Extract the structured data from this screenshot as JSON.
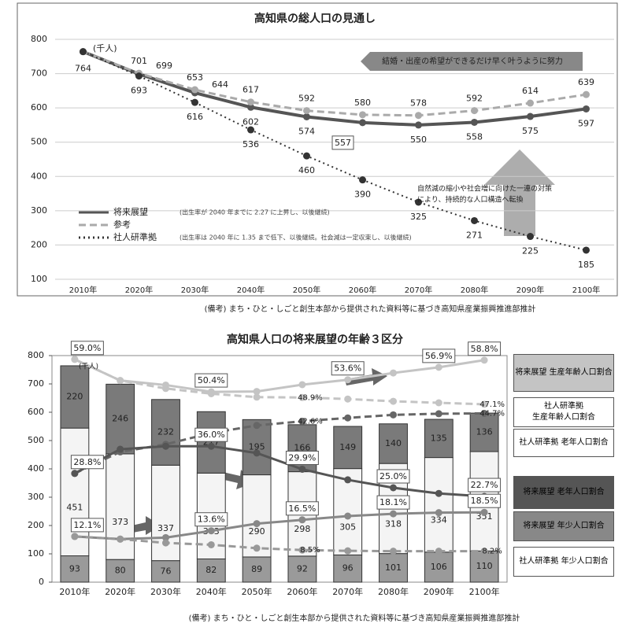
{
  "chart_data": [
    {
      "type": "line",
      "title": "高知県の総人口の見通し",
      "categories": [
        "2010年",
        "2020年",
        "2030年",
        "2040年",
        "2050年",
        "2060年",
        "2070年",
        "2080年",
        "2090年",
        "2100年"
      ],
      "series": [
        {
          "name": "将来展望",
          "color": "#555555",
          "style": "solid",
          "values": [
            764,
            699,
            644,
            602,
            574,
            557,
            550,
            558,
            575,
            597
          ],
          "value_labels": [
            "764",
            "699",
            "644",
            "602",
            "574",
            "557",
            "550",
            "558",
            "575",
            "597"
          ]
        },
        {
          "name": "参考",
          "color": "#aaaaaa",
          "style": "dashed",
          "values": [
            764,
            701,
            653,
            617,
            592,
            580,
            578,
            592,
            614,
            639
          ],
          "value_labels": [
            null,
            "701",
            "653",
            "617",
            "592",
            "580",
            "578",
            "592",
            "614",
            "639"
          ]
        },
        {
          "name": "社人研準拠",
          "color": "#333333",
          "style": "dotted",
          "values": [
            764,
            693,
            616,
            536,
            460,
            390,
            325,
            271,
            225,
            185
          ],
          "value_labels": [
            null,
            "693",
            "616",
            "536",
            "460",
            "390",
            "325",
            "271",
            "225",
            "185"
          ]
        }
      ],
      "ylim": [
        100,
        800
      ],
      "yticks": [
        100,
        200,
        300,
        400,
        500,
        600,
        700,
        800
      ],
      "grid": true,
      "annotations": [
        "(千人)",
        "結婚・出産の希望ができるだけ早く叶うように努力",
        "自然減の縮小や社会増に向けた一連の対策",
        "により、持続的な人口構造へ転換",
        "(出生率が 2040 年までに 2.27 に上昇し、以後継続)",
        "(出生率は 2040 年に 1.35 まで低下、以後継続。社会減は一定収束し、以後継続)"
      ],
      "footnote": "(備考) まち・ひと・しごと創生本部から提供された資料等に基づき高知県産業振興推進部推計"
    },
    {
      "type": "bar",
      "title": "高知県人口の将来展望の年齢３区分",
      "categories": [
        "2010年",
        "2020年",
        "2030年",
        "2040年",
        "2050年",
        "2060年",
        "2070年",
        "2080年",
        "2090年",
        "2100年"
      ],
      "stacks": [
        {
          "color": "#9a9a9a",
          "values": [
            93,
            80,
            76,
            82,
            89,
            92,
            96,
            101,
            106,
            110
          ]
        },
        {
          "color": "#f4f4f4",
          "values": [
            451,
            373,
            337,
            303,
            290,
            298,
            305,
            318,
            334,
            351
          ]
        },
        {
          "color": "#7a7a7a",
          "values": [
            220,
            246,
            232,
            217,
            195,
            166,
            149,
            140,
            135,
            136
          ]
        }
      ],
      "ylim": [
        0,
        800
      ],
      "yticks": [
        0,
        100,
        200,
        300,
        400,
        500,
        600,
        700,
        800
      ],
      "y2lim": [
        0,
        60
      ],
      "series": [
        {
          "name": "将来展望 生産年齢人口割合",
          "color": "#c4c4c4",
          "style": "solid",
          "axis": "y2",
          "values": [
            59.0,
            53.4,
            52.2,
            50.4,
            50.5,
            52.3,
            53.6,
            55.4,
            56.9,
            58.8
          ],
          "value_labels": [
            "59.0%",
            null,
            null,
            "50.4%",
            null,
            null,
            "53.6%",
            null,
            "56.9%",
            "58.8%"
          ]
        },
        {
          "name": "社人研準拠 生産年齢人口割合",
          "color": "#c4c4c4",
          "style": "dashed",
          "axis": "y2",
          "values": [
            59.0,
            53.4,
            51.3,
            49.9,
            49.0,
            48.9,
            48.5,
            47.9,
            47.5,
            47.1
          ],
          "value_labels": [
            null,
            null,
            null,
            null,
            null,
            "48.9%",
            null,
            null,
            null,
            "47.1%"
          ]
        },
        {
          "name": "社人研準拠 老年人口割合",
          "color": "#666666",
          "style": "dashed",
          "axis": "y2",
          "values": [
            28.8,
            34.5,
            36.5,
            39.5,
            41.5,
            42.6,
            43.5,
            44.3,
            44.6,
            44.7
          ],
          "value_labels": [
            null,
            null,
            null,
            null,
            null,
            "42.6%",
            null,
            null,
            null,
            "44.7%"
          ]
        },
        {
          "name": "将来展望 老年人口割合",
          "color": "#555555",
          "style": "solid",
          "axis": "y2",
          "values": [
            28.8,
            35.2,
            36.0,
            36.0,
            34.2,
            29.9,
            27.1,
            25.0,
            23.5,
            22.7
          ],
          "value_labels": [
            "28.8%",
            null,
            null,
            "36.0%",
            null,
            "29.9%",
            null,
            "25.0%",
            null,
            "22.7%"
          ]
        },
        {
          "name": "将来展望 年少人口割合",
          "color": "#888888",
          "style": "solid",
          "axis": "y2",
          "values": [
            12.1,
            11.4,
            11.8,
            13.6,
            15.5,
            16.5,
            17.5,
            18.1,
            18.4,
            18.5
          ],
          "value_labels": [
            "12.1%",
            null,
            null,
            "13.6%",
            null,
            "16.5%",
            null,
            "18.1%",
            null,
            "18.5%"
          ]
        },
        {
          "name": "社人研準拠 年少人口割合",
          "color": "#999999",
          "style": "dashed",
          "axis": "y2",
          "values": [
            12.1,
            11.4,
            10.4,
            9.9,
            9.0,
            8.5,
            8.3,
            8.2,
            8.2,
            8.2
          ],
          "value_labels": [
            null,
            null,
            null,
            null,
            null,
            "8.5%",
            null,
            null,
            null,
            "8.2%"
          ]
        }
      ],
      "annotations": [
        "(千人)"
      ],
      "footnote": "(備考) まち・ひと・しごと創生本部から提供された資料等に基づき高知県産業振興推進部推計"
    }
  ]
}
